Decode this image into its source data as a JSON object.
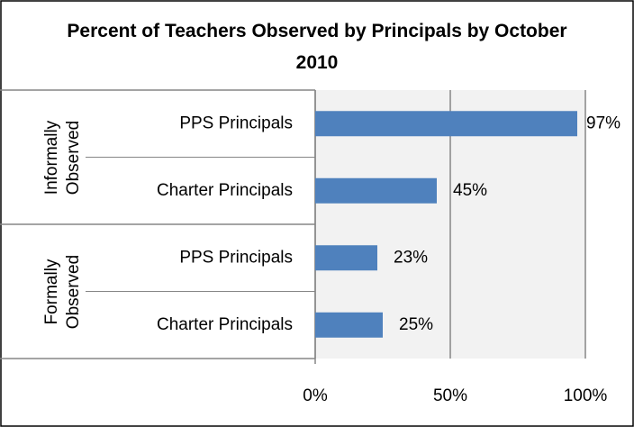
{
  "chart_data": {
    "type": "bar",
    "orientation": "horizontal",
    "title": "Percent of Teachers Observed by Principals by October 2010",
    "groups": [
      {
        "label": "Informally Observed",
        "categories": [
          0,
          1
        ]
      },
      {
        "label": "Formally Observed",
        "categories": [
          2,
          3
        ]
      }
    ],
    "categories": [
      "PPS Principals",
      "Charter Principals",
      "PPS Principals",
      "Charter Principals"
    ],
    "values": [
      97,
      45,
      23,
      25
    ],
    "value_labels": [
      "97%",
      "45%",
      "23%",
      "25%"
    ],
    "color": "#4f81bd",
    "xlim": [
      0,
      100
    ],
    "xticks": [
      {
        "value": 0,
        "label": "0%"
      },
      {
        "value": 50,
        "label": "50%"
      },
      {
        "value": 100,
        "label": "100%"
      }
    ],
    "grid": true
  }
}
